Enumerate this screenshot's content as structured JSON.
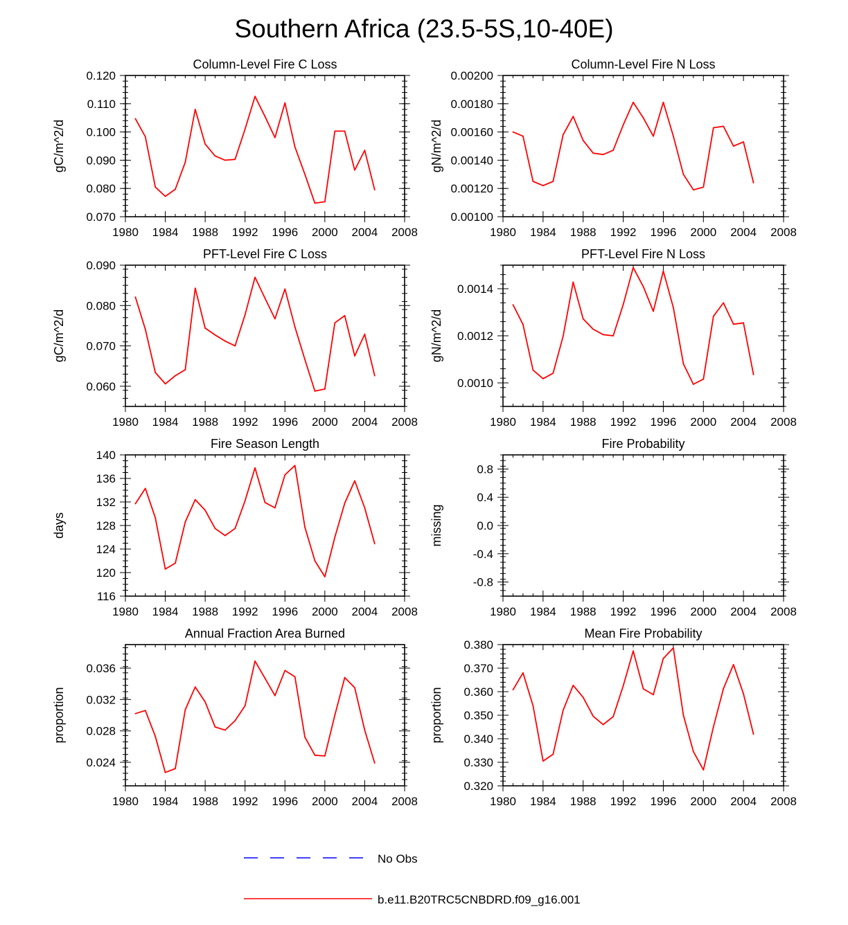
{
  "title": "Southern Africa (23.5-5S,10-40E)",
  "colors": {
    "model": "#ff0000",
    "obs": "#0000ff",
    "axis": "#000000"
  },
  "legend": [
    {
      "label": "No Obs",
      "style": "dashed",
      "color": "#0000ff"
    },
    {
      "label": "b.e11.B20TRC5CNBDRD.f09_g16.001",
      "style": "solid",
      "color": "#ff0000"
    }
  ],
  "chart_data": [
    {
      "type": "line",
      "title": "Column-Level Fire C Loss",
      "ylabel": "gC/m^2/d",
      "xlim": [
        1980,
        2008
      ],
      "ylim": [
        0.07,
        0.12
      ],
      "xticks": [
        "1980",
        "1984",
        "1988",
        "1992",
        "1996",
        "2000",
        "2004",
        "2008"
      ],
      "yticks": [
        {
          "value": 0.07,
          "label": "0.070"
        },
        {
          "value": 0.08,
          "label": "0.080"
        },
        {
          "value": 0.09,
          "label": "0.090"
        },
        {
          "value": 0.1,
          "label": "0.100"
        },
        {
          "value": 0.11,
          "label": "0.110"
        },
        {
          "value": 0.12,
          "label": "0.120"
        }
      ],
      "minor_y_step": 0.002,
      "series": [
        {
          "name": "b.e11.B20TRC5CNBDRD.f09_g16.001",
          "x": [
            1981,
            1982,
            1983,
            1984,
            1985,
            1986,
            1987,
            1988,
            1989,
            1990,
            1991,
            1992,
            1993,
            1994,
            1995,
            1996,
            1997,
            1998,
            1999,
            2000,
            2001,
            2002,
            2003,
            2004,
            2005
          ],
          "values": [
            0.1047,
            0.0983,
            0.0805,
            0.0772,
            0.0797,
            0.0893,
            0.108,
            0.0957,
            0.0915,
            0.09,
            0.0903,
            0.101,
            0.1126,
            0.1055,
            0.098,
            0.1103,
            0.0947,
            0.085,
            0.0748,
            0.0753,
            0.1003,
            0.1003,
            0.0865,
            0.0935,
            0.0795
          ]
        }
      ]
    },
    {
      "type": "line",
      "title": "Column-Level Fire N Loss",
      "ylabel": "gN/m^2/d",
      "xlim": [
        1980,
        2008
      ],
      "ylim": [
        0.001,
        0.002
      ],
      "xticks": [
        "1980",
        "1984",
        "1988",
        "1992",
        "1996",
        "2000",
        "2004",
        "2008"
      ],
      "yticks": [
        {
          "value": 0.001,
          "label": "0.00100"
        },
        {
          "value": 0.0012,
          "label": "0.00120"
        },
        {
          "value": 0.0014,
          "label": "0.00140"
        },
        {
          "value": 0.0016,
          "label": "0.00160"
        },
        {
          "value": 0.0018,
          "label": "0.00180"
        },
        {
          "value": 0.002,
          "label": "0.00200"
        }
      ],
      "minor_y_step": 4e-05,
      "series": [
        {
          "name": "b.e11.B20TRC5CNBDRD.f09_g16.001",
          "x": [
            1981,
            1982,
            1983,
            1984,
            1985,
            1986,
            1987,
            1988,
            1989,
            1990,
            1991,
            1992,
            1993,
            1994,
            1995,
            1996,
            1997,
            1998,
            1999,
            2000,
            2001,
            2002,
            2003,
            2004,
            2005
          ],
          "values": [
            0.0016,
            0.00157,
            0.00125,
            0.00122,
            0.00125,
            0.00158,
            0.00171,
            0.00154,
            0.00145,
            0.00144,
            0.00147,
            0.00165,
            0.00181,
            0.0017,
            0.00157,
            0.00181,
            0.00157,
            0.0013,
            0.00119,
            0.00121,
            0.00163,
            0.00164,
            0.0015,
            0.00153,
            0.00124
          ]
        }
      ]
    },
    {
      "type": "line",
      "title": "PFT-Level Fire C Loss",
      "ylabel": "gC/m^2/d",
      "xlim": [
        1980,
        2008
      ],
      "ylim": [
        0.055,
        0.09
      ],
      "xticks": [
        "1980",
        "1984",
        "1988",
        "1992",
        "1996",
        "2000",
        "2004",
        "2008"
      ],
      "yticks": [
        {
          "value": 0.06,
          "label": "0.060"
        },
        {
          "value": 0.07,
          "label": "0.070"
        },
        {
          "value": 0.08,
          "label": "0.080"
        },
        {
          "value": 0.09,
          "label": "0.090"
        }
      ],
      "minor_y_step": 0.002,
      "series": [
        {
          "name": "b.e11.B20TRC5CNBDRD.f09_g16.001",
          "x": [
            1981,
            1982,
            1983,
            1984,
            1985,
            1986,
            1987,
            1988,
            1989,
            1990,
            1991,
            1992,
            1993,
            1994,
            1995,
            1996,
            1997,
            1998,
            1999,
            2000,
            2001,
            2002,
            2003,
            2004,
            2005
          ],
          "values": [
            0.0821,
            0.0741,
            0.0634,
            0.0606,
            0.0626,
            0.0641,
            0.0843,
            0.0744,
            0.0727,
            0.0712,
            0.07,
            0.0777,
            0.087,
            0.0818,
            0.0767,
            0.0841,
            0.0747,
            0.0666,
            0.0588,
            0.0593,
            0.0757,
            0.0775,
            0.0675,
            0.0729,
            0.0626
          ]
        }
      ]
    },
    {
      "type": "line",
      "title": "PFT-Level Fire N Loss",
      "ylabel": "gN/m^2/d",
      "xlim": [
        1980,
        2008
      ],
      "ylim": [
        0.0009,
        0.0015
      ],
      "xticks": [
        "1980",
        "1984",
        "1988",
        "1992",
        "1996",
        "2000",
        "2004",
        "2008"
      ],
      "yticks": [
        {
          "value": 0.001,
          "label": "0.0010"
        },
        {
          "value": 0.0012,
          "label": "0.0012"
        },
        {
          "value": 0.0014,
          "label": "0.0014"
        }
      ],
      "minor_y_step": 4e-05,
      "series": [
        {
          "name": "b.e11.B20TRC5CNBDRD.f09_g16.001",
          "x": [
            1981,
            1982,
            1983,
            1984,
            1985,
            1986,
            1987,
            1988,
            1989,
            1990,
            1991,
            1992,
            1993,
            1994,
            1995,
            1996,
            1997,
            1998,
            1999,
            2000,
            2001,
            2002,
            2003,
            2004,
            2005
          ],
          "values": [
            0.001332,
            0.001248,
            0.001054,
            0.001018,
            0.001041,
            0.001198,
            0.001428,
            0.001272,
            0.001228,
            0.001205,
            0.0012,
            0.001333,
            0.00149,
            0.001409,
            0.001304,
            0.001475,
            0.00132,
            0.001081,
            0.000994,
            0.001016,
            0.001283,
            0.00134,
            0.001249,
            0.001255,
            0.001035
          ]
        }
      ]
    },
    {
      "type": "line",
      "title": "Fire Season Length",
      "ylabel": "days",
      "xlim": [
        1980,
        2008
      ],
      "ylim": [
        116,
        140
      ],
      "xticks": [
        "1980",
        "1984",
        "1988",
        "1992",
        "1996",
        "2000",
        "2004",
        "2008"
      ],
      "yticks": [
        {
          "value": 116,
          "label": "116"
        },
        {
          "value": 120,
          "label": "120"
        },
        {
          "value": 124,
          "label": "124"
        },
        {
          "value": 128,
          "label": "128"
        },
        {
          "value": 132,
          "label": "132"
        },
        {
          "value": 136,
          "label": "136"
        },
        {
          "value": 140,
          "label": "140"
        }
      ],
      "minor_y_step": 1,
      "series": [
        {
          "name": "b.e11.B20TRC5CNBDRD.f09_g16.001",
          "x": [
            1981,
            1982,
            1983,
            1984,
            1985,
            1986,
            1987,
            1988,
            1989,
            1990,
            1991,
            1992,
            1993,
            1994,
            1995,
            1996,
            1997,
            1998,
            1999,
            2000,
            2001,
            2002,
            2003,
            2004,
            2005
          ],
          "values": [
            131.7,
            134.3,
            129.3,
            120.6,
            121.6,
            128.6,
            132.4,
            130.6,
            127.5,
            126.3,
            127.5,
            132.2,
            137.8,
            131.9,
            131.0,
            136.6,
            138.2,
            127.7,
            122.0,
            119.3,
            126.0,
            131.8,
            135.6,
            131.0,
            124.9
          ]
        }
      ]
    },
    {
      "type": "line",
      "title": "Fire Probability",
      "ylabel": "missing",
      "xlim": [
        1980,
        2008
      ],
      "ylim": [
        -1.0,
        1.0
      ],
      "xticks": [
        "1980",
        "1984",
        "1988",
        "1992",
        "1996",
        "2000",
        "2004",
        "2008"
      ],
      "yticks": [
        {
          "value": -0.8,
          "label": "-0.8"
        },
        {
          "value": -0.4,
          "label": "-0.4"
        },
        {
          "value": 0.0,
          "label": "0.0"
        },
        {
          "value": 0.4,
          "label": "0.4"
        },
        {
          "value": 0.8,
          "label": "0.8"
        }
      ],
      "minor_y_step": 0.08,
      "series": []
    },
    {
      "type": "line",
      "title": "Annual Fraction Area Burned",
      "ylabel": "proportion",
      "xlim": [
        1980,
        2008
      ],
      "ylim": [
        0.021,
        0.039
      ],
      "xticks": [
        "1980",
        "1984",
        "1988",
        "1992",
        "1996",
        "2000",
        "2004",
        "2008"
      ],
      "yticks": [
        {
          "value": 0.024,
          "label": "0.024"
        },
        {
          "value": 0.028,
          "label": "0.028"
        },
        {
          "value": 0.032,
          "label": "0.032"
        },
        {
          "value": 0.036,
          "label": "0.036"
        }
      ],
      "minor_y_step": 0.0008,
      "series": [
        {
          "name": "b.e11.B20TRC5CNBDRD.f09_g16.001",
          "x": [
            1981,
            1982,
            1983,
            1984,
            1985,
            1986,
            1987,
            1988,
            1989,
            1990,
            1991,
            1992,
            1993,
            1994,
            1995,
            1996,
            1997,
            1998,
            1999,
            2000,
            2001,
            2002,
            2003,
            2004,
            2005
          ],
          "values": [
            0.0302,
            0.0306,
            0.0273,
            0.0227,
            0.0232,
            0.0307,
            0.0336,
            0.0317,
            0.0285,
            0.0281,
            0.0293,
            0.0312,
            0.0369,
            0.0347,
            0.0325,
            0.0357,
            0.0349,
            0.0272,
            0.0249,
            0.0248,
            0.03,
            0.0348,
            0.0335,
            0.0281,
            0.0239
          ]
        }
      ]
    },
    {
      "type": "line",
      "title": "Mean Fire Probability",
      "ylabel": "proportion",
      "xlim": [
        1980,
        2008
      ],
      "ylim": [
        0.32,
        0.38
      ],
      "xticks": [
        "1980",
        "1984",
        "1988",
        "1992",
        "1996",
        "2000",
        "2004",
        "2008"
      ],
      "yticks": [
        {
          "value": 0.32,
          "label": "0.320"
        },
        {
          "value": 0.33,
          "label": "0.330"
        },
        {
          "value": 0.34,
          "label": "0.340"
        },
        {
          "value": 0.35,
          "label": "0.350"
        },
        {
          "value": 0.36,
          "label": "0.360"
        },
        {
          "value": 0.37,
          "label": "0.370"
        },
        {
          "value": 0.38,
          "label": "0.380"
        }
      ],
      "minor_y_step": 0.002,
      "series": [
        {
          "name": "b.e11.B20TRC5CNBDRD.f09_g16.001",
          "x": [
            1981,
            1982,
            1983,
            1984,
            1985,
            1986,
            1987,
            1988,
            1989,
            1990,
            1991,
            1992,
            1993,
            1994,
            1995,
            1996,
            1997,
            1998,
            1999,
            2000,
            2001,
            2002,
            2003,
            2004,
            2005
          ],
          "values": [
            0.3608,
            0.368,
            0.354,
            0.3305,
            0.3334,
            0.3521,
            0.3627,
            0.3576,
            0.3496,
            0.346,
            0.3494,
            0.3625,
            0.3773,
            0.3612,
            0.3587,
            0.3741,
            0.3786,
            0.35,
            0.3346,
            0.3268,
            0.3451,
            0.3613,
            0.3715,
            0.3591,
            0.3419
          ]
        }
      ]
    }
  ]
}
